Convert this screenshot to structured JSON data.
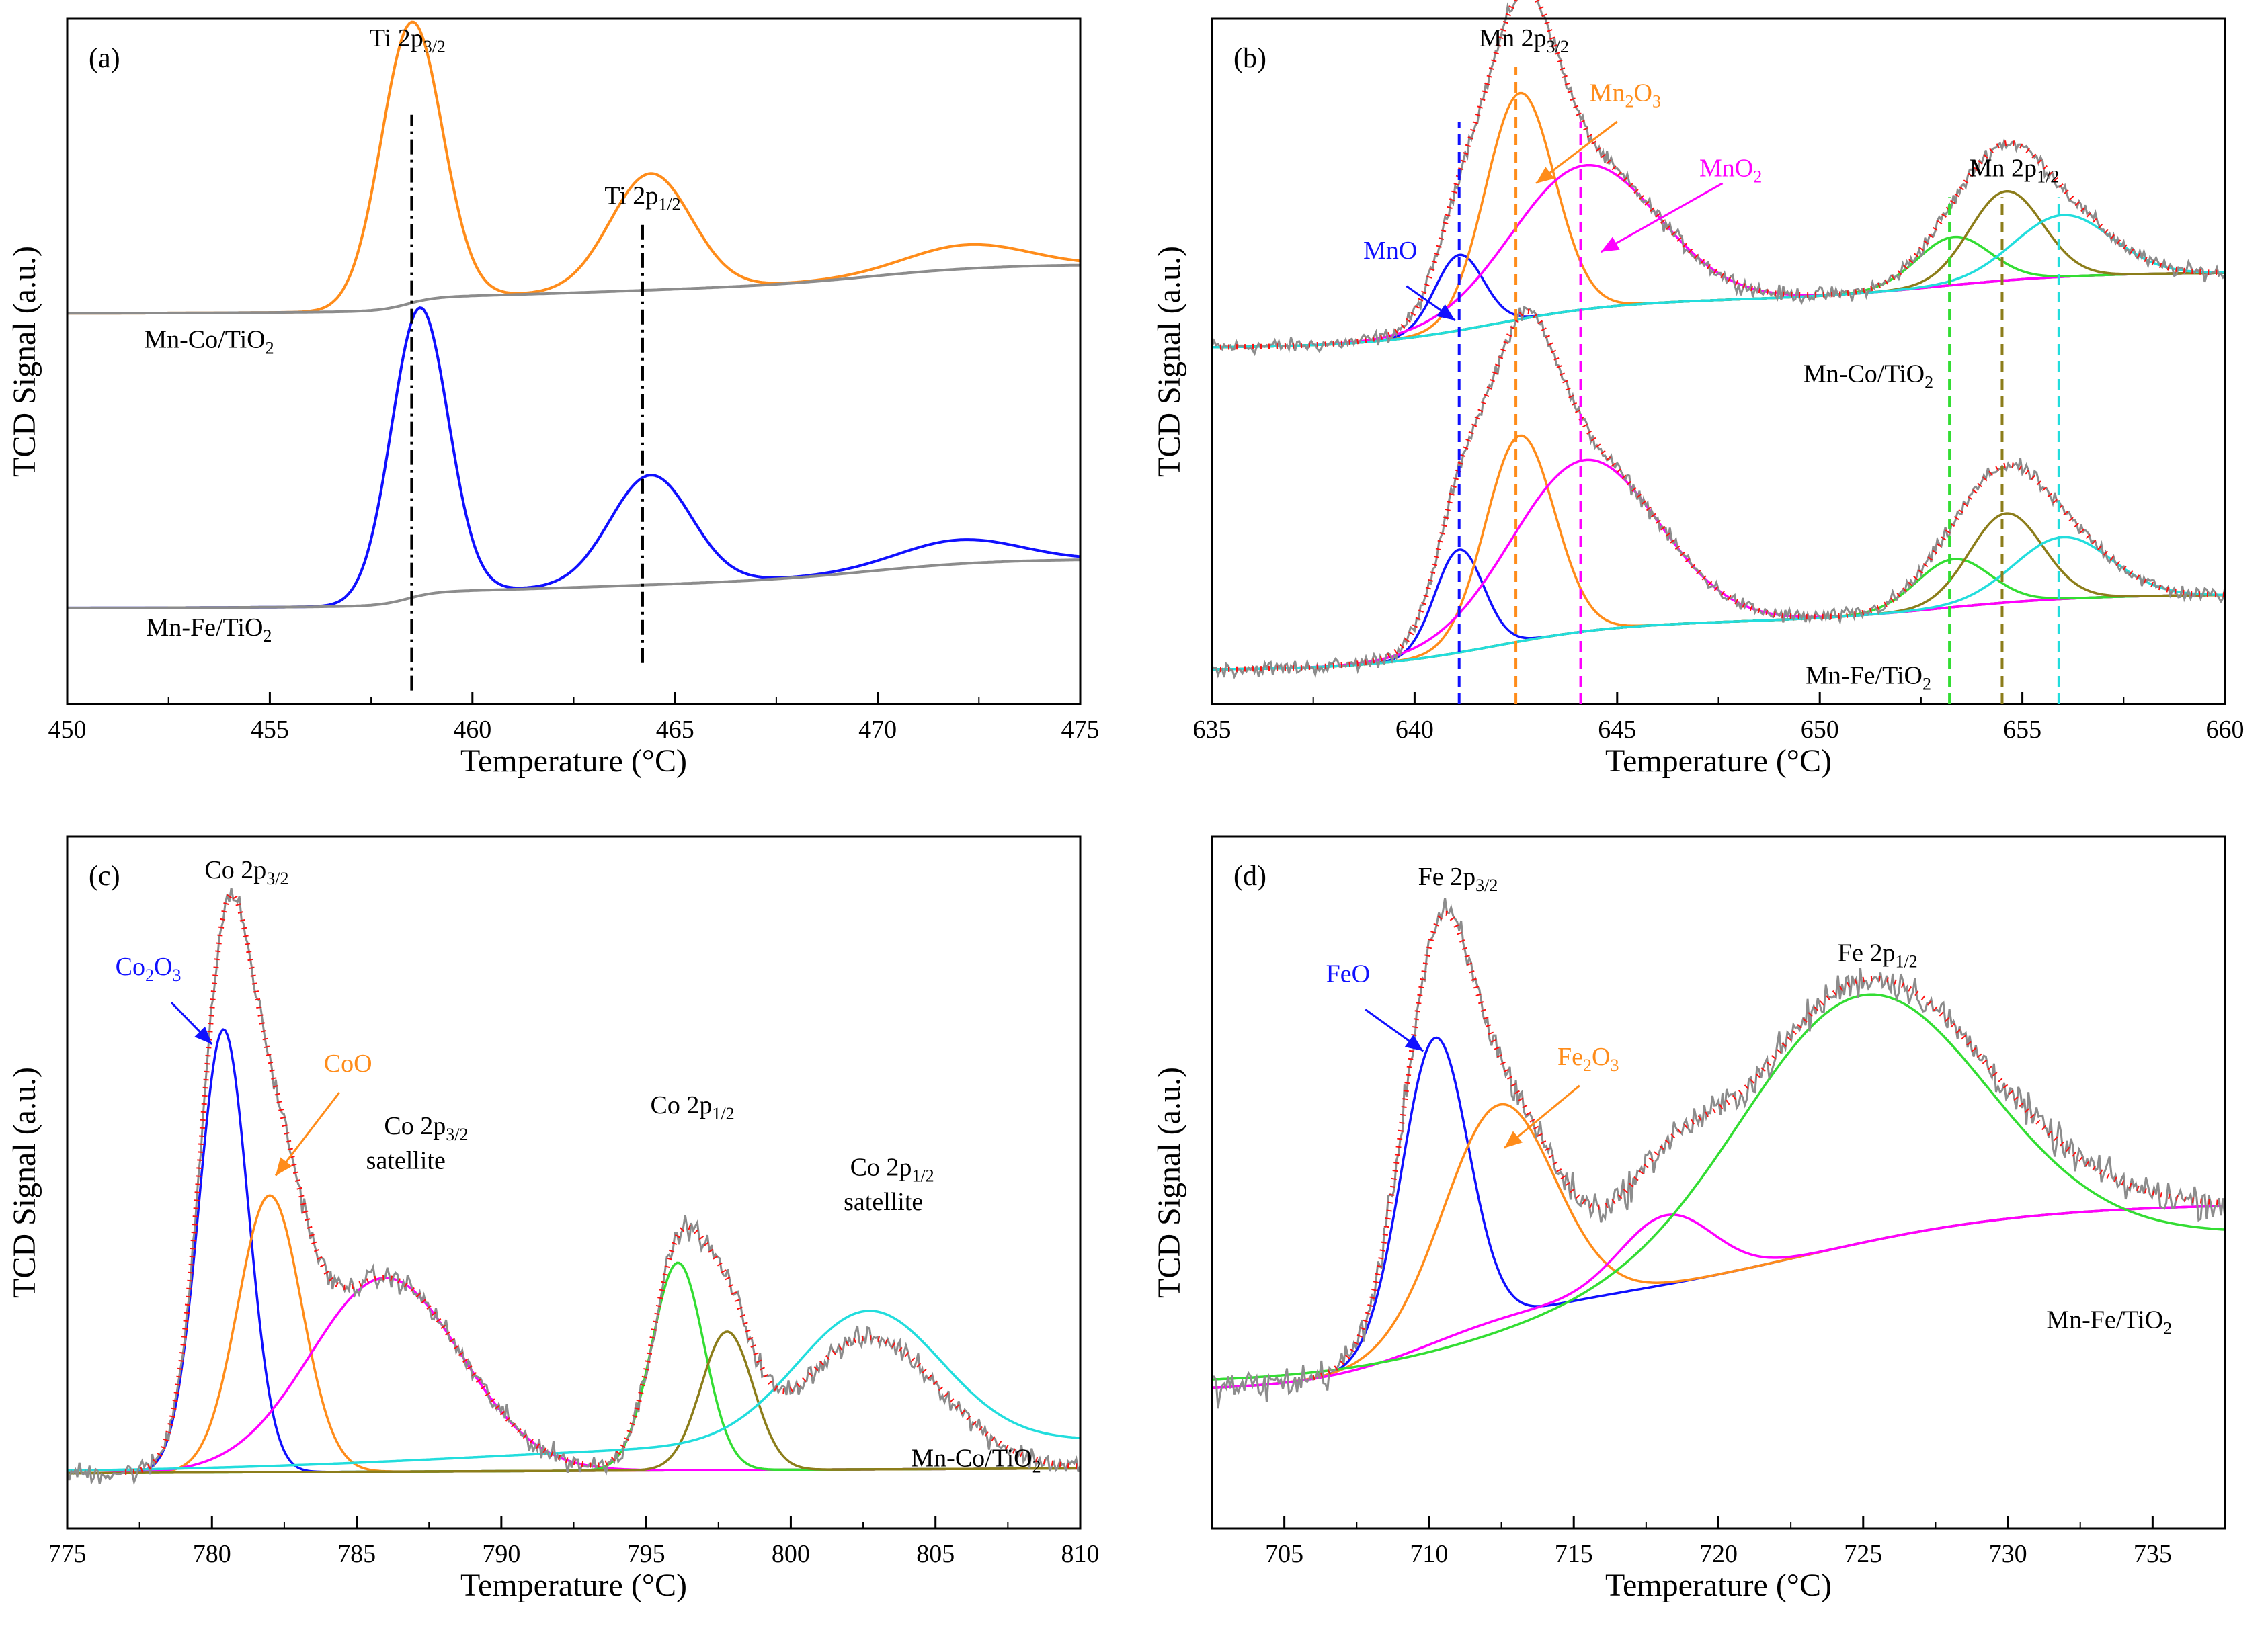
{
  "chart_data": [
    {
      "type": "line",
      "panel": "(a)",
      "xlabel": "Temperature (°C)",
      "ylabel": "TCD Signal (a.u.)",
      "xlim": [
        450,
        475
      ],
      "ylim": [
        0,
        100
      ],
      "xticks": [
        450,
        455,
        460,
        465,
        470,
        475
      ],
      "xtick_labels": [
        "450",
        "455",
        "460",
        "465",
        "470",
        "475"
      ],
      "annotations": [
        {
          "text": "Ti 2p",
          "sub": "3/2",
          "x": 458.4,
          "y": 96,
          "color": "#000000"
        },
        {
          "text": "Ti 2p",
          "sub": "1/2",
          "x": 464.2,
          "y": 73,
          "color": "#000000"
        },
        {
          "text": "Mn-Co/TiO",
          "sub": "2",
          "x": 453.5,
          "y": 52,
          "color": "#000000"
        },
        {
          "text": "Mn-Fe/TiO",
          "sub": "2",
          "x": 453.5,
          "y": 10,
          "color": "#000000"
        }
      ],
      "vlines": [
        {
          "x": 458.5,
          "y0": 2,
          "y1": 86,
          "color": "#000000",
          "dash": "dashdot"
        },
        {
          "x": 464.2,
          "y0": 6,
          "y1": 70,
          "color": "#000000",
          "dash": "dashdot"
        }
      ],
      "series": [
        {
          "name": "Mn-Co/TiO2",
          "color": "#ff8c1a",
          "base": [
            450,
            57
          ],
          "bg": 2,
          "peaks": [
            [
              458.5,
              41,
              0.75
            ],
            [
              464.4,
              17,
              1.0
            ],
            [
              472.2,
              3.5,
              1.5
            ]
          ]
        },
        {
          "name": "Mn-Co/TiO2 background",
          "color": "#8c8c8c",
          "base": [
            450,
            57
          ],
          "bg": 2,
          "peaks": []
        },
        {
          "name": "Mn-Fe/TiO2",
          "color": "#1010ff",
          "base": [
            450,
            14
          ],
          "bg": 2,
          "peaks": [
            [
              458.7,
              42,
              0.7
            ],
            [
              464.4,
              16,
              1.0
            ],
            [
              472.0,
              3.5,
              1.5
            ]
          ]
        },
        {
          "name": "Mn-Fe/TiO2 background",
          "color": "#8c8c8c",
          "base": [
            450,
            14
          ],
          "bg": 2,
          "peaks": []
        }
      ]
    },
    {
      "type": "line",
      "panel": "(b)",
      "xlabel": "Temperature (°C)",
      "ylabel": "TCD Signal (a.u.)",
      "xlim": [
        635,
        660
      ],
      "ylim": [
        0,
        100
      ],
      "xticks": [
        635,
        640,
        645,
        650,
        655,
        660
      ],
      "xtick_labels": [
        "635",
        "640",
        "645",
        "650",
        "655",
        "660"
      ],
      "annotations": [
        {
          "text": "Mn 2p",
          "sub": "3/2",
          "x": 642.7,
          "y": 96,
          "color": "#000000"
        },
        {
          "text": "Mn 2p",
          "sub": "1/2",
          "x": 654.8,
          "y": 77,
          "color": "#000000"
        },
        {
          "text": "Mn",
          "sub": "2",
          "tail": "O",
          "sub2": "3",
          "x": 645.2,
          "y": 88,
          "color": "#ff8c1a"
        },
        {
          "text": "MnO",
          "sub": "2",
          "x": 647.8,
          "y": 77,
          "color": "#ff00ff"
        },
        {
          "text": "MnO",
          "sub": "",
          "x": 639.4,
          "y": 65,
          "color": "#1010ff"
        },
        {
          "text": "Mn-Co/TiO",
          "sub": "2",
          "x": 651.2,
          "y": 47,
          "color": "#000000"
        },
        {
          "text": "Mn-Fe/TiO",
          "sub": "2",
          "x": 651.2,
          "y": 3,
          "color": "#000000"
        }
      ],
      "arrows": [
        {
          "x0": 645.0,
          "y0": 85,
          "x1": 643.0,
          "y1": 76,
          "color": "#ff8c1a"
        },
        {
          "x0": 647.6,
          "y0": 76,
          "x1": 644.6,
          "y1": 66,
          "color": "#ff00ff"
        },
        {
          "x0": 639.8,
          "y0": 61,
          "x1": 641.0,
          "y1": 56,
          "color": "#1010ff"
        }
      ],
      "vlines": [
        {
          "x": 641.1,
          "y0": 0,
          "y1": 85,
          "color": "#1010ff",
          "dash": "dash"
        },
        {
          "x": 642.5,
          "y0": 0,
          "y1": 93,
          "color": "#ff8c1a",
          "dash": "dash"
        },
        {
          "x": 644.1,
          "y0": 0,
          "y1": 85,
          "color": "#ff00ff",
          "dash": "dash"
        },
        {
          "x": 653.2,
          "y0": 0,
          "y1": 74,
          "color": "#33dd33",
          "dash": "dash"
        },
        {
          "x": 654.5,
          "y0": 0,
          "y1": 74,
          "color": "#8c7d1a",
          "dash": "dash"
        },
        {
          "x": 655.9,
          "y0": 0,
          "y1": 74,
          "color": "#22dddd",
          "dash": "dash"
        }
      ]
    },
    {
      "type": "line",
      "panel": "(c)",
      "xlabel": "Temperature (°C)",
      "ylabel": "TCD Signal (a.u.)",
      "xlim": [
        775,
        810
      ],
      "ylim": [
        0,
        100
      ],
      "xticks": [
        775,
        780,
        785,
        790,
        795,
        800,
        805,
        810
      ],
      "xtick_labels": [
        "775",
        "780",
        "785",
        "790",
        "795",
        "800",
        "805",
        "810"
      ],
      "annotations": [
        {
          "text": "Co 2p",
          "sub": "3/2",
          "x": 781.2,
          "y": 94,
          "color": "#000000"
        },
        {
          "text": "Co",
          "sub": "2",
          "tail": "O",
          "sub2": "3",
          "x": 777.8,
          "y": 80,
          "color": "#1010ff"
        },
        {
          "text": "CoO",
          "sub": "",
          "x": 784.7,
          "y": 66,
          "color": "#ff8c1a"
        },
        {
          "text": "Co 2p",
          "sub": "3/2",
          "x": 787.4,
          "y": 57,
          "color": "#000000"
        },
        {
          "text": "satellite",
          "sub": "",
          "x": 786.7,
          "y": 52,
          "color": "#000000"
        },
        {
          "text": "Co 2p",
          "sub": "1/2",
          "x": 796.6,
          "y": 60,
          "color": "#000000"
        },
        {
          "text": "Co 2p",
          "sub": "1/2",
          "x": 803.5,
          "y": 51,
          "color": "#000000"
        },
        {
          "text": "satellite",
          "sub": "",
          "x": 803.2,
          "y": 46,
          "color": "#000000"
        },
        {
          "text": "Mn-Co/TiO",
          "sub": "2",
          "x": 806.4,
          "y": 9,
          "color": "#000000"
        }
      ],
      "arrows": [
        {
          "x0": 778.6,
          "y0": 76,
          "x1": 780.0,
          "y1": 70,
          "color": "#1010ff"
        },
        {
          "x0": 784.4,
          "y0": 63,
          "x1": 782.2,
          "y1": 51,
          "color": "#ff8c1a"
        }
      ]
    },
    {
      "type": "line",
      "panel": "(d)",
      "xlabel": "Temperature (°C)",
      "ylabel": "TCD Signal (a.u.)",
      "xlim": [
        702.5,
        737.5
      ],
      "ylim": [
        0,
        100
      ],
      "xticks": [
        705,
        710,
        715,
        720,
        725,
        730,
        735
      ],
      "xtick_labels": [
        "705",
        "710",
        "715",
        "720",
        "725",
        "730",
        "735"
      ],
      "annotations": [
        {
          "text": "Fe 2p",
          "sub": "3/2",
          "x": 711.0,
          "y": 93,
          "color": "#000000"
        },
        {
          "text": "Fe 2p",
          "sub": "1/2",
          "x": 725.5,
          "y": 82,
          "color": "#000000"
        },
        {
          "text": "FeO",
          "sub": "",
          "x": 707.2,
          "y": 79,
          "color": "#1010ff"
        },
        {
          "text": "Fe",
          "sub": "2",
          "tail": "O",
          "sub2": "3",
          "x": 715.5,
          "y": 67,
          "color": "#ff8c1a"
        },
        {
          "text": "Mn-Fe/TiO",
          "sub": "2",
          "x": 733.5,
          "y": 29,
          "color": "#000000"
        }
      ],
      "arrows": [
        {
          "x0": 707.8,
          "y0": 75,
          "x1": 709.8,
          "y1": 69,
          "color": "#1010ff"
        },
        {
          "x0": 715.2,
          "y0": 64,
          "x1": 712.6,
          "y1": 55,
          "color": "#ff8c1a"
        }
      ]
    }
  ]
}
